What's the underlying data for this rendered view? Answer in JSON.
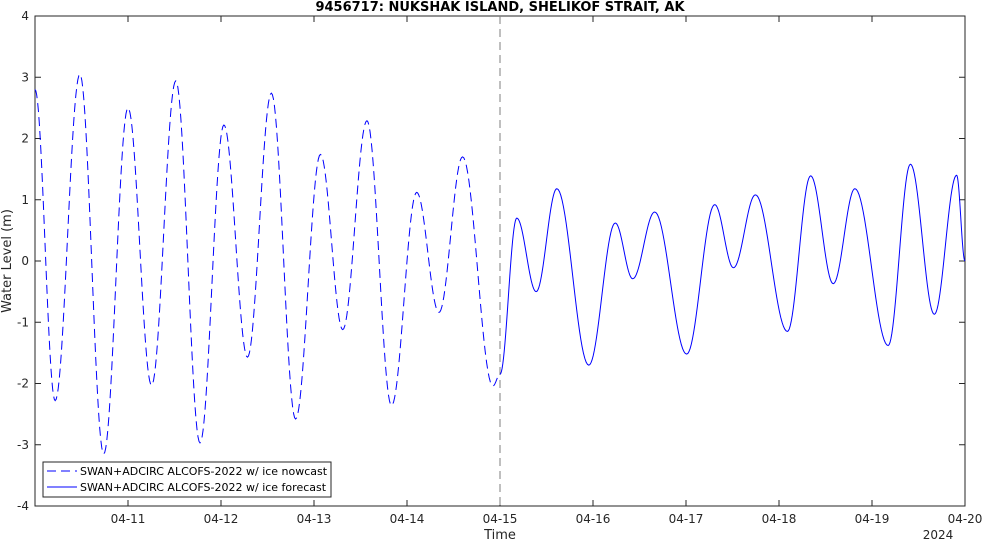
{
  "chart_data": {
    "type": "line",
    "title": "9456717: NUKSHAK ISLAND, SHELIKOF STRAIT, AK",
    "xlabel": "Time",
    "ylabel": "Water Level (m)",
    "year_label": "2024",
    "ylim": [
      -4,
      4
    ],
    "yticks": [
      -4,
      -3,
      -2,
      -1,
      0,
      1,
      2,
      3,
      4
    ],
    "xlim": [
      "2024-04-10 00:00",
      "2024-04-20 00:00"
    ],
    "xticks": [
      {
        "t": "2024-04-11",
        "label": "04-11"
      },
      {
        "t": "2024-04-12",
        "label": "04-12"
      },
      {
        "t": "2024-04-13",
        "label": "04-13"
      },
      {
        "t": "2024-04-14",
        "label": "04-14"
      },
      {
        "t": "2024-04-15",
        "label": "04-15"
      },
      {
        "t": "2024-04-16",
        "label": "04-16"
      },
      {
        "t": "2024-04-17",
        "label": "04-17"
      },
      {
        "t": "2024-04-18",
        "label": "04-18"
      },
      {
        "t": "2024-04-19",
        "label": "04-19"
      },
      {
        "t": "2024-04-20",
        "label": "04-20"
      }
    ],
    "grid": false,
    "legend_position": "bottom-left",
    "nowcast_end": "2024-04-15 00:00",
    "series": [
      {
        "name": "SWAN+ADCIRC ALCOFS-2022 w/ ice nowcast",
        "style": "dashed",
        "color": "#0000ff",
        "extrema": [
          [
            "2024-04-10 00:00",
            2.8
          ],
          [
            "2024-04-10 05:12",
            -2.28
          ],
          [
            "2024-04-10 11:35",
            3.05
          ],
          [
            "2024-04-10 17:44",
            -3.15
          ],
          [
            "2024-04-11 00:00",
            2.5
          ],
          [
            "2024-04-11 06:05",
            -2.03
          ],
          [
            "2024-04-11 12:20",
            2.94
          ],
          [
            "2024-04-11 18:35",
            -2.97
          ],
          [
            "2024-04-12 00:45",
            2.22
          ],
          [
            "2024-04-12 06:50",
            -1.57
          ],
          [
            "2024-04-12 13:00",
            2.74
          ],
          [
            "2024-04-12 19:15",
            -2.58
          ],
          [
            "2024-04-13 01:40",
            1.74
          ],
          [
            "2024-04-13 07:25",
            -1.12
          ],
          [
            "2024-04-13 13:40",
            2.29
          ],
          [
            "2024-04-13 20:00",
            -2.36
          ],
          [
            "2024-04-14 02:30",
            1.12
          ],
          [
            "2024-04-14 08:15",
            -0.84
          ],
          [
            "2024-04-14 14:20",
            1.7
          ],
          [
            "2024-04-14 22:10",
            -2.04
          ],
          [
            "2024-04-15 00:00",
            -1.85
          ]
        ]
      },
      {
        "name": "SWAN+ADCIRC ALCOFS-2022 w/ ice forecast",
        "style": "solid",
        "color": "#0000ff",
        "extrema": [
          [
            "2024-04-15 00:00",
            -1.85
          ],
          [
            "2024-04-15 04:20",
            0.7
          ],
          [
            "2024-04-15 09:20",
            -0.5
          ],
          [
            "2024-04-15 14:40",
            1.18
          ],
          [
            "2024-04-15 22:55",
            -1.7
          ],
          [
            "2024-04-16 05:45",
            0.62
          ],
          [
            "2024-04-16 10:15",
            -0.29
          ],
          [
            "2024-04-16 15:55",
            0.8
          ],
          [
            "2024-04-17 00:10",
            -1.52
          ],
          [
            "2024-04-17 07:25",
            0.92
          ],
          [
            "2024-04-17 12:15",
            -0.11
          ],
          [
            "2024-04-17 17:55",
            1.08
          ],
          [
            "2024-04-18 02:10",
            -1.15
          ],
          [
            "2024-04-18 08:10",
            1.39
          ],
          [
            "2024-04-18 14:00",
            -0.37
          ],
          [
            "2024-04-18 19:35",
            1.18
          ],
          [
            "2024-04-19 04:10",
            -1.38
          ],
          [
            "2024-04-19 09:55",
            1.58
          ],
          [
            "2024-04-19 16:05",
            -0.87
          ],
          [
            "2024-04-19 21:50",
            1.4
          ],
          [
            "2024-04-20 00:00",
            0.0
          ]
        ]
      }
    ]
  }
}
